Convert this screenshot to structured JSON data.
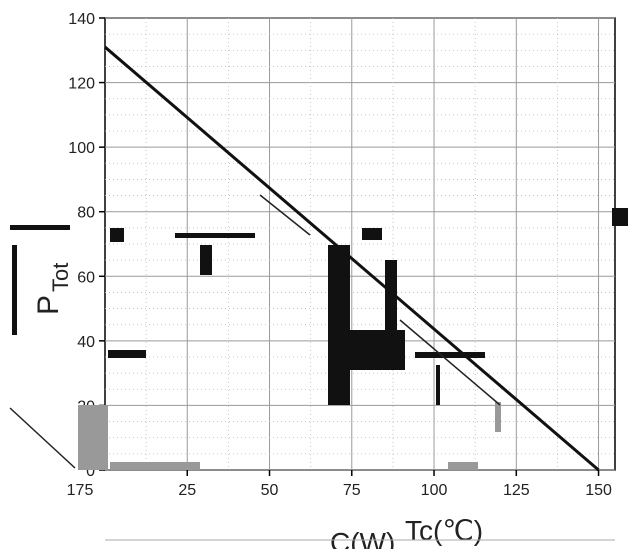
{
  "chart_data": {
    "type": "line",
    "title": "",
    "ylabel": "P",
    "ylabel_sub": "Tot",
    "xlabel_left": "C(W)",
    "xlabel": "Tc(℃)",
    "xlim": [
      0,
      155
    ],
    "ylim": [
      0,
      140
    ],
    "x_ticks": [
      25,
      50,
      75,
      100,
      125,
      150
    ],
    "x_tick_labels": [
      "25",
      "50",
      "75",
      "100",
      "125",
      "150"
    ],
    "left_corrupted_tick_label": "175",
    "y_ticks": [
      0,
      20,
      40,
      60,
      80,
      100,
      120,
      140
    ],
    "y_tick_labels": [
      "0",
      "20",
      "40",
      "60",
      "80",
      "100",
      "120",
      "140"
    ],
    "grid": true,
    "series": [
      {
        "x": [
          0,
          150
        ],
        "y": [
          131,
          0
        ]
      }
    ],
    "colors": {
      "line": "#111111",
      "grid": "#9a9a9a",
      "axis": "#000000"
    }
  }
}
